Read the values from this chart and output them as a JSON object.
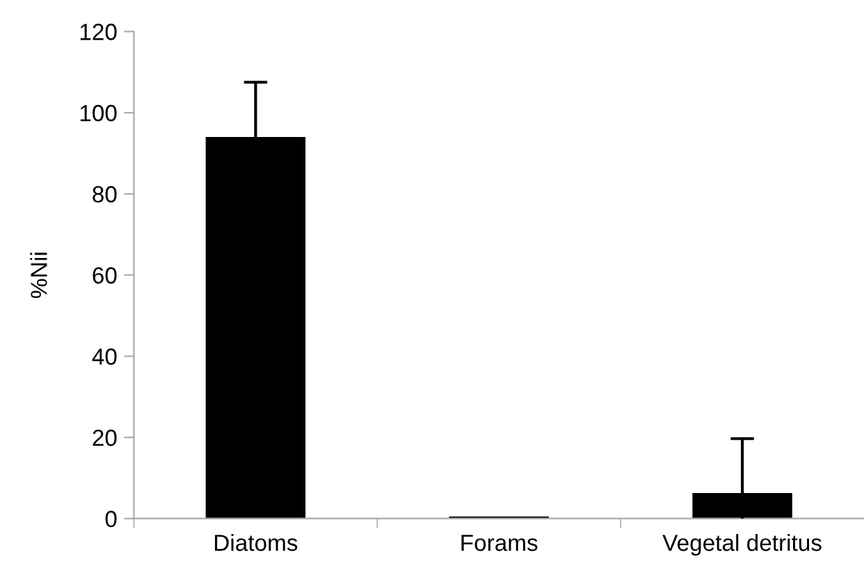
{
  "chart_data": {
    "type": "bar",
    "ylabel": "%Nii",
    "categories": [
      "Diatoms",
      "Forams",
      "Vegetal detritus"
    ],
    "values": [
      94,
      0.5,
      6.3
    ],
    "errors": [
      13.5,
      null,
      13.4
    ],
    "color": "#000000",
    "ylim": [
      0,
      120
    ],
    "yticks": [
      0,
      20,
      40,
      60,
      80,
      100,
      120
    ],
    "grid": false
  }
}
